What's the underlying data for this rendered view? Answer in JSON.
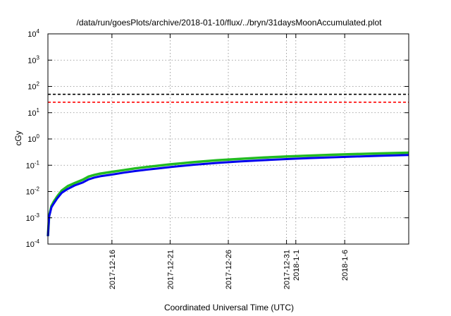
{
  "chart_data": {
    "type": "line",
    "title": "/data/run/goesPlots/archive/2018-01-10/flux/../bryn/31daysMoonAccumulated.plot",
    "xlabel": "Coordinated Universal Time (UTC)",
    "ylabel": "cGy",
    "y_scale": "log",
    "ylim_exponents": [
      -4,
      4
    ],
    "y_tick_exponents": [
      -4,
      -3,
      -2,
      -1,
      0,
      1,
      2,
      3,
      4
    ],
    "y_tick_base": "10",
    "x_ticks": [
      "2017-12-16",
      "2017-12-21",
      "2017-12-26",
      "2017-12-31",
      "2018-1-1",
      "2018-1-6"
    ],
    "x_tick_days": [
      5,
      10,
      15,
      20,
      20.8,
      25
    ],
    "xlim_days": [
      -0.5,
      30.5
    ],
    "grid": true,
    "thresholds": [
      {
        "value": 50,
        "color": "#000000",
        "style": "dashed"
      },
      {
        "value": 25,
        "color": "#ff0000",
        "style": "dashed"
      }
    ],
    "series": [
      {
        "color": "#22bb22",
        "x_days": [
          -0.5,
          -0.4,
          -0.2,
          0.0,
          0.3,
          0.7,
          1.2,
          1.8,
          2.5,
          3.0,
          3.5,
          4.0,
          5,
          6,
          7,
          8,
          9,
          10,
          12,
          14,
          16,
          18,
          20,
          22,
          24,
          26,
          28,
          30.5
        ],
        "values": [
          0.0002,
          0.0012,
          0.0028,
          0.0041,
          0.0065,
          0.011,
          0.016,
          0.021,
          0.028,
          0.037,
          0.043,
          0.048,
          0.056,
          0.065,
          0.076,
          0.086,
          0.096,
          0.108,
          0.131,
          0.154,
          0.175,
          0.196,
          0.215,
          0.233,
          0.25,
          0.266,
          0.281,
          0.3
        ]
      },
      {
        "color": "#0000ee",
        "x_days": [
          -0.5,
          -0.4,
          -0.2,
          0.0,
          0.3,
          0.7,
          1.2,
          1.8,
          2.5,
          3.0,
          3.5,
          4.0,
          5,
          6,
          7,
          8,
          9,
          10,
          12,
          14,
          16,
          18,
          20,
          22,
          24,
          26,
          28,
          30.5
        ],
        "values": [
          0.0002,
          0.0011,
          0.0025,
          0.0035,
          0.0055,
          0.009,
          0.0125,
          0.017,
          0.022,
          0.029,
          0.034,
          0.038,
          0.044,
          0.052,
          0.06,
          0.068,
          0.076,
          0.085,
          0.104,
          0.122,
          0.139,
          0.156,
          0.172,
          0.187,
          0.201,
          0.215,
          0.228,
          0.245
        ]
      }
    ],
    "colors": {
      "grid": "#888888",
      "frame": "#000000"
    }
  }
}
